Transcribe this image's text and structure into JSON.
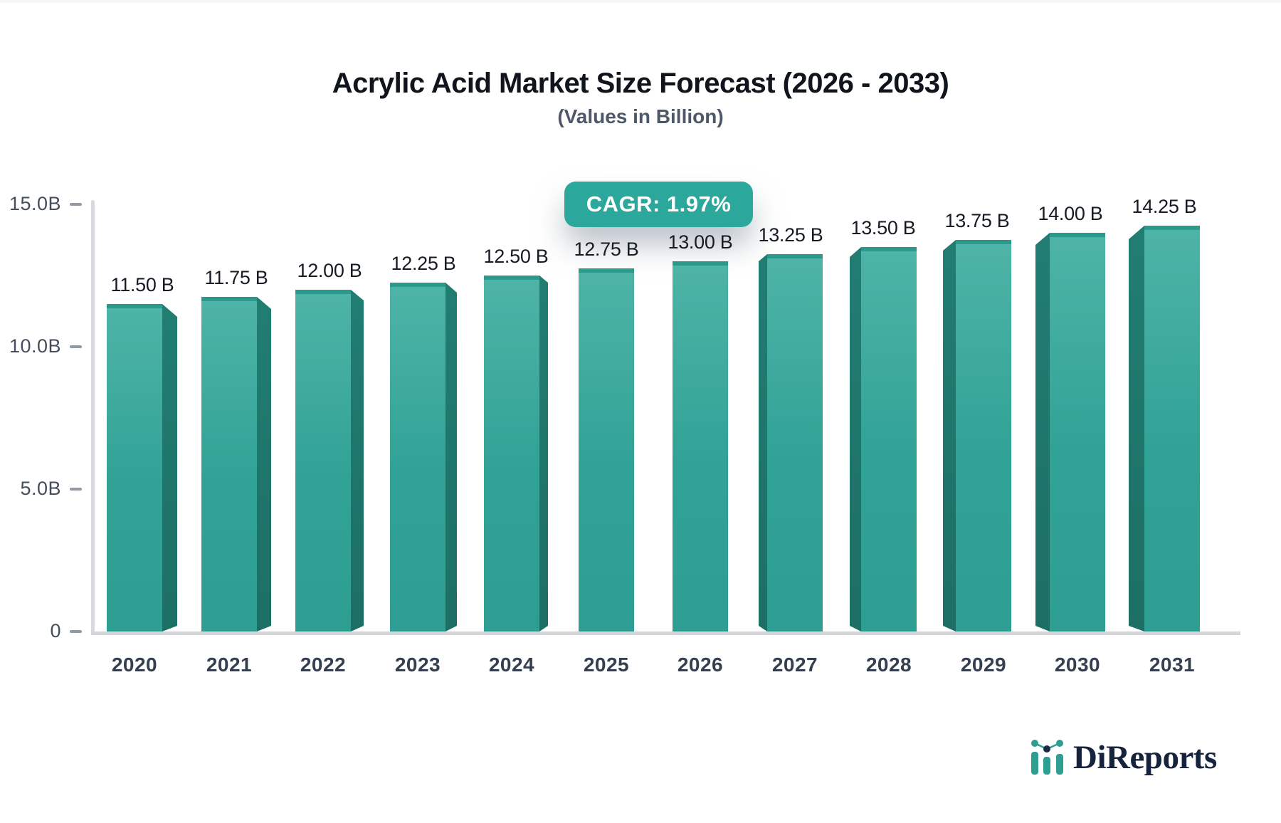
{
  "header": {
    "title": "Acrylic Acid Market Size Forecast (2026 - 2033)",
    "subtitle": "(Values in Billion)"
  },
  "cagr_badge": {
    "label": "CAGR: 1.97%"
  },
  "chart_data": {
    "type": "bar",
    "title": "Acrylic Acid Market Size Forecast (2026 - 2033)",
    "subtitle": "(Values in Billion)",
    "categories": [
      "2020",
      "2021",
      "2022",
      "2023",
      "2024",
      "2025",
      "2026",
      "2027",
      "2028",
      "2029",
      "2030",
      "2031"
    ],
    "values": [
      11.5,
      11.75,
      12.0,
      12.25,
      12.5,
      12.75,
      13.0,
      13.25,
      13.5,
      13.75,
      14.0,
      14.25
    ],
    "bar_labels": [
      "11.50 B",
      "11.75 B",
      "12.00 B",
      "12.25 B",
      "12.50 B",
      "12.75 B",
      "13.00 B",
      "13.25 B",
      "13.50 B",
      "13.75 B",
      "14.00 B",
      "14.25 B"
    ],
    "annotation": "CAGR: 1.97%",
    "xlabel": "",
    "ylabel": "",
    "ylim": [
      0,
      15
    ],
    "ytick_values": [
      0,
      5,
      10,
      15
    ],
    "ytick_labels": [
      "0",
      "5.0B",
      "10.0B",
      "15.0B"
    ],
    "grid": false,
    "legend": false,
    "bar_color": "#31a296",
    "bar_side_color": "#1f7a6f",
    "bar_cap_color": "#2b9a8d",
    "badge_color": "#2BA89B",
    "axis_color": "#d8dade"
  },
  "logo": {
    "text": "DiReports",
    "icon": "mini-bar-chart-icon"
  },
  "colors": {
    "title": "#10141c",
    "subtitle": "#4e5866",
    "tick_label": "#454e5c",
    "year_label": "#353f4d",
    "value_label": "#171c24",
    "logo_navy": "#15243c",
    "logo_teal": "#2E9D92"
  }
}
